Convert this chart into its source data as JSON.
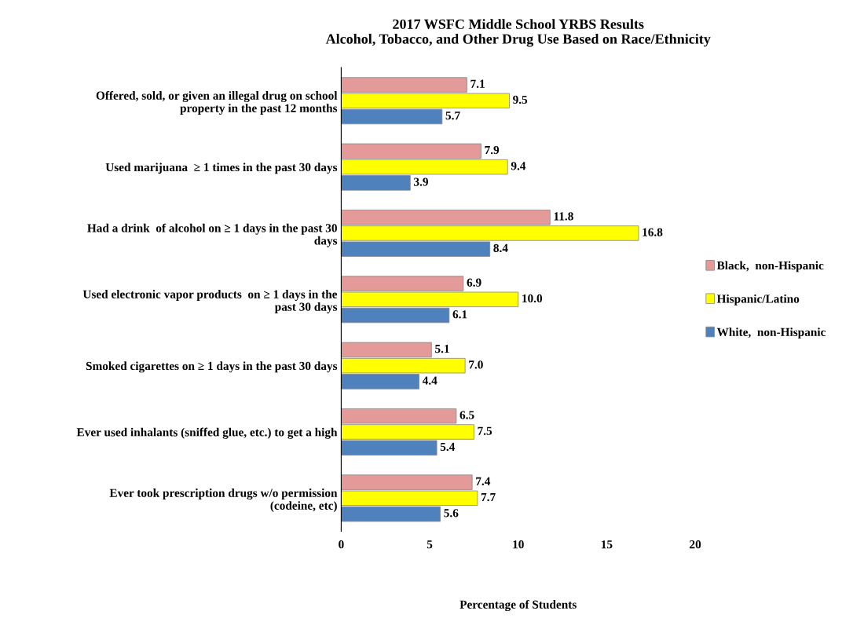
{
  "chart_data": {
    "type": "bar",
    "orientation": "horizontal",
    "title": "2017 WSFC Middle School YRBS Results\nAlcohol, Tobacco, and Other Drug Use Based on Race/Ethnicity",
    "xlabel": "Percentage of Students",
    "categories": [
      "Offered, sold, or given an illegal drug on school\nproperty in the past 12 months",
      "Used marijuana  ≥ 1 times in the past 30 days",
      "Had a drink  of alcohol on ≥ 1 days in the past 30\ndays",
      "Used electronic vapor products  on ≥ 1 days in the\npast 30 days",
      "Smoked cigarettes on ≥ 1 days in the past 30 days",
      "Ever used inhalants (sniffed glue, etc.) to get a high",
      "Ever took prescription drugs w/o permission\n(codeine, etc)"
    ],
    "series": [
      {
        "name": "Black,  non-Hispanic",
        "color": "#e59a9a",
        "values": [
          7.1,
          7.9,
          11.8,
          6.9,
          5.1,
          6.5,
          7.4
        ],
        "value_labels": [
          "7.1",
          "7.9",
          "11.8",
          "6.9",
          "5.1",
          "6.5",
          "7.4"
        ]
      },
      {
        "name": "Hispanic/Latino",
        "color": "#ffff00",
        "values": [
          9.5,
          9.4,
          16.8,
          10.0,
          7.0,
          7.5,
          7.7
        ],
        "value_labels": [
          "9.5",
          "9.4",
          "16.8",
          "10.0",
          "7.0",
          "7.5",
          "7.7"
        ]
      },
      {
        "name": "White,  non-Hispanic",
        "color": "#4f81bd",
        "values": [
          5.7,
          3.9,
          8.4,
          6.1,
          4.4,
          5.4,
          5.6
        ],
        "value_labels": [
          "5.7",
          "3.9",
          "8.4",
          "6.1",
          "4.4",
          "5.4",
          "5.6"
        ]
      }
    ],
    "xlim": [
      0,
      20
    ],
    "xticks": [
      0,
      5,
      10,
      15,
      20
    ],
    "grid": false,
    "legend": "right"
  }
}
